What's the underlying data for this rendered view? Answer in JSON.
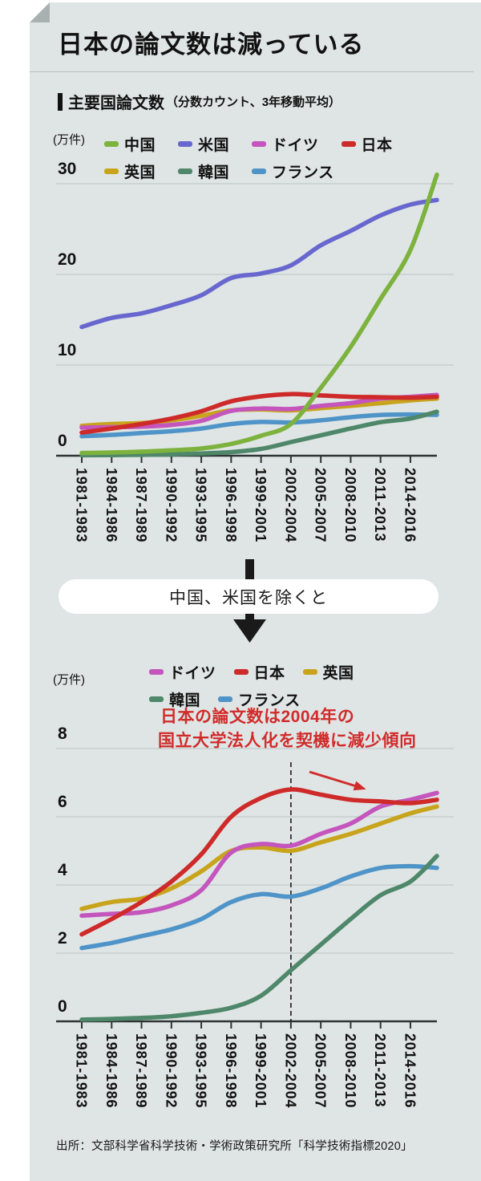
{
  "header": {
    "title": "日本の論文数は減っている"
  },
  "section": {
    "title": "主要国論文数",
    "note": "（分数カウント、3年移動平均）"
  },
  "middle": {
    "pill_label": "中国、米国を除くと"
  },
  "annotation": {
    "line1": "日本の論文数は2004年の",
    "line2": "国立大学法人化を契機に減少傾向",
    "color": "#d12b2b"
  },
  "source": {
    "text": "出所：文部科学省科学技術・学術政策研究所「科学技術指標2020」"
  },
  "colors": {
    "card_bg": "#dfe5e4",
    "grid": "#c2cbca",
    "axis": "#2e3434",
    "text": "#111111",
    "fold": "#a9b1b0"
  },
  "chart_data": [
    {
      "type": "line",
      "title": "主要国論文数",
      "subtitle": "分数カウント、3年移動平均",
      "unit_label": "(万件)",
      "ylim": [
        0,
        30
      ],
      "yticks": [
        0,
        10,
        20,
        30
      ],
      "grid": true,
      "legend_position": "top",
      "categories": [
        "1981-1983",
        "1984-1986",
        "1987-1989",
        "1990-1992",
        "1993-1995",
        "1996-1998",
        "1999-2001",
        "2002-2004",
        "2005-2007",
        "2008-2010",
        "2011-2013",
        "2014-2016"
      ],
      "note_last_point": "series include one extra point beyond the 2014-2016 tick",
      "series": [
        {
          "id": "china",
          "name": "中国",
          "color": "#7db23e",
          "values": [
            0.3,
            0.35,
            0.45,
            0.6,
            0.8,
            1.3,
            2.2,
            3.5,
            7.5,
            12.0,
            17.3,
            22.7,
            31.0
          ]
        },
        {
          "id": "us",
          "name": "米国",
          "color": "#6867cf",
          "values": [
            14.2,
            15.2,
            15.7,
            16.6,
            17.7,
            19.6,
            20.1,
            21.0,
            23.2,
            24.8,
            26.5,
            27.7,
            28.2
          ]
        },
        {
          "id": "germany",
          "name": "ドイツ",
          "color": "#c455bc",
          "values": [
            3.1,
            3.15,
            3.2,
            3.4,
            3.85,
            4.95,
            5.2,
            5.15,
            5.5,
            5.8,
            6.3,
            6.5,
            6.7
          ]
        },
        {
          "id": "japan",
          "name": "日本",
          "color": "#ce2a2a",
          "values": [
            2.55,
            3.0,
            3.5,
            4.1,
            4.9,
            6.0,
            6.55,
            6.8,
            6.65,
            6.5,
            6.45,
            6.4,
            6.5
          ]
        },
        {
          "id": "uk",
          "name": "英国",
          "color": "#c8a41c",
          "values": [
            3.3,
            3.5,
            3.6,
            3.9,
            4.4,
            5.0,
            5.1,
            5.0,
            5.25,
            5.5,
            5.8,
            6.1,
            6.3
          ]
        },
        {
          "id": "korea",
          "name": "韓国",
          "color": "#4e8769",
          "values": [
            0.05,
            0.07,
            0.1,
            0.15,
            0.25,
            0.4,
            0.75,
            1.5,
            2.25,
            3.0,
            3.7,
            4.1,
            4.85
          ]
        },
        {
          "id": "france",
          "name": "フランス",
          "color": "#4f94c8",
          "values": [
            2.15,
            2.3,
            2.5,
            2.7,
            3.0,
            3.5,
            3.73,
            3.66,
            3.9,
            4.25,
            4.5,
            4.55,
            4.5
          ]
        }
      ],
      "legend_rows": [
        [
          "china",
          "us",
          "germany",
          "japan"
        ],
        [
          "uk",
          "korea",
          "france"
        ]
      ]
    },
    {
      "type": "line",
      "title": "中国、米国を除く主要国論文数",
      "unit_label": "(万件)",
      "ylim": [
        0,
        8
      ],
      "yticks": [
        0,
        2,
        4,
        6,
        8
      ],
      "grid": true,
      "legend_position": "top",
      "dashed_line_category": "2002-2004",
      "categories": [
        "1981-1983",
        "1984-1986",
        "1987-1989",
        "1990-1992",
        "1993-1995",
        "1996-1998",
        "1999-2001",
        "2002-2004",
        "2005-2007",
        "2008-2010",
        "2011-2013",
        "2014-2016"
      ],
      "series": [
        {
          "id": "germany",
          "name": "ドイツ",
          "color": "#c455bc",
          "values": [
            3.1,
            3.15,
            3.2,
            3.4,
            3.85,
            4.95,
            5.2,
            5.15,
            5.5,
            5.8,
            6.3,
            6.5,
            6.7
          ]
        },
        {
          "id": "japan",
          "name": "日本",
          "color": "#ce2a2a",
          "values": [
            2.55,
            3.0,
            3.5,
            4.1,
            4.9,
            6.0,
            6.55,
            6.8,
            6.65,
            6.5,
            6.45,
            6.4,
            6.5
          ]
        },
        {
          "id": "uk",
          "name": "英国",
          "color": "#c8a41c",
          "values": [
            3.3,
            3.5,
            3.6,
            3.9,
            4.4,
            5.0,
            5.1,
            5.0,
            5.25,
            5.5,
            5.8,
            6.1,
            6.3
          ]
        },
        {
          "id": "korea",
          "name": "韓国",
          "color": "#4e8769",
          "values": [
            0.05,
            0.07,
            0.1,
            0.15,
            0.25,
            0.4,
            0.75,
            1.5,
            2.25,
            3.0,
            3.7,
            4.1,
            4.85
          ]
        },
        {
          "id": "france",
          "name": "フランス",
          "color": "#4f94c8",
          "values": [
            2.15,
            2.3,
            2.5,
            2.7,
            3.0,
            3.5,
            3.73,
            3.66,
            3.9,
            4.25,
            4.5,
            4.55,
            4.5
          ]
        }
      ],
      "legend_rows": [
        [
          "germany",
          "japan",
          "uk"
        ],
        [
          "korea",
          "france"
        ]
      ]
    }
  ]
}
